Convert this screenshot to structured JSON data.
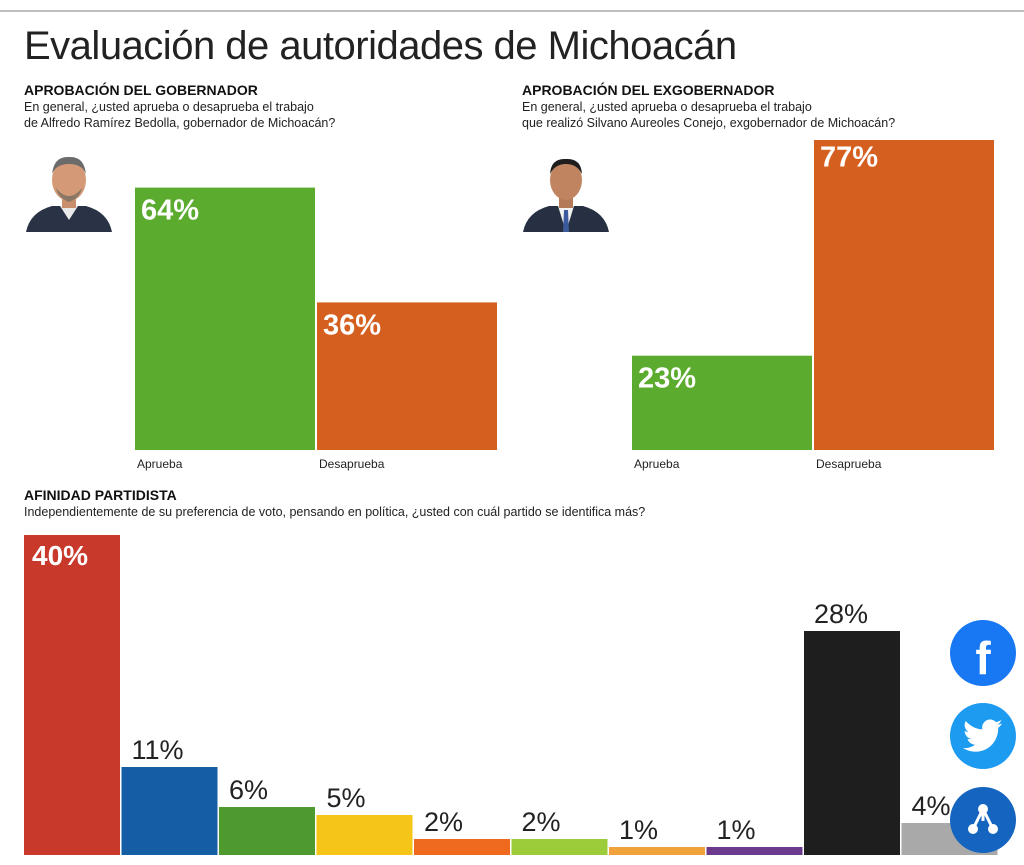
{
  "title": "Evaluación de autoridades de Michoacán",
  "sections": {
    "governor": {
      "heading": "APROBACIÓN DEL GOBERNADOR",
      "question_line1": "En general, ¿usted aprueba o desaprueba el trabajo",
      "question_line2": "de Alfredo Ramírez Bedolla, gobernador de Michoacán?"
    },
    "ex_governor": {
      "heading": "APROBACIÓN DEL EXGOBERNADOR",
      "question_line1": "En general, ¿usted aprueba o desaprueba el trabajo",
      "question_line2": "que realizó Silvano Aureoles Conejo, exgobernador de Michoacán?"
    },
    "affinity": {
      "heading": "AFINIDAD PARTIDISTA",
      "question": "Independientemente de su preferencia de voto, pensando en política, ¿usted con cuál partido se identifica más?"
    }
  },
  "colors": {
    "aprueba": "#5aab2e",
    "desaprueba": "#d55f1f"
  },
  "social": [
    "facebook-icon",
    "twitter-icon",
    "share-icon"
  ],
  "chart_data": [
    {
      "type": "bar",
      "categories": [
        "Aprueba",
        "Desaprueba"
      ],
      "values": [
        64,
        36
      ],
      "labels": [
        "64%",
        "36%"
      ],
      "colors": [
        "#5aab2e",
        "#d55f1f"
      ],
      "ylim": [
        0,
        100
      ]
    },
    {
      "type": "bar",
      "categories": [
        "Aprueba",
        "Desaprueba"
      ],
      "values": [
        23,
        77
      ],
      "labels": [
        "23%",
        "77%"
      ],
      "colors": [
        "#5aab2e",
        "#d55f1f"
      ],
      "ylim": [
        0,
        100
      ]
    },
    {
      "type": "bar",
      "values": [
        40,
        11,
        6,
        5,
        2,
        2,
        1,
        1,
        28,
        4
      ],
      "labels": [
        "40%",
        "11%",
        "6%",
        "5%",
        "2%",
        "2%",
        "1%",
        "1%",
        "28%",
        "4%"
      ],
      "colors": [
        "#c8382b",
        "#155ea6",
        "#4f9a2f",
        "#f5c518",
        "#ef6a1f",
        "#9ccc3a",
        "#f2a23a",
        "#6b3a8c",
        "#1e1e1e",
        "#a9a9a9"
      ],
      "ylim": [
        0,
        40
      ]
    }
  ]
}
